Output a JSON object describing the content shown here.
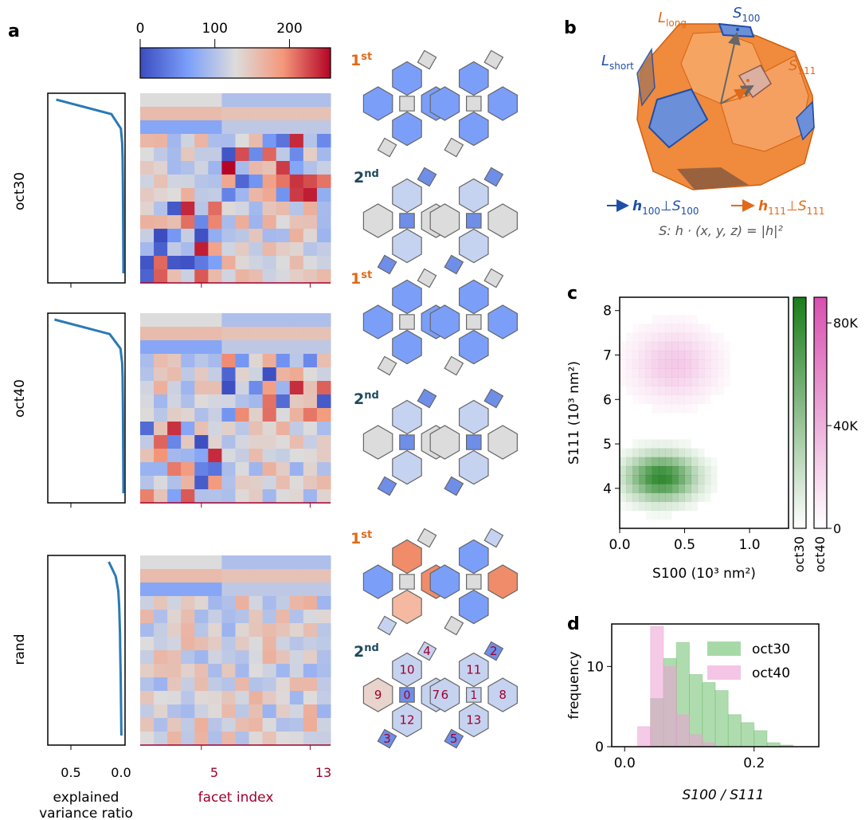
{
  "panel_labels": {
    "a": "a",
    "b": "b",
    "c": "c",
    "d": "d"
  },
  "colorbar_a": {
    "ticks": [
      "0",
      "100",
      "200"
    ],
    "tick_values": [
      0,
      100,
      200
    ],
    "range": [
      0,
      255
    ]
  },
  "rows": [
    {
      "label": "oct30",
      "evr": [
        0.78,
        0.14,
        0.03,
        0.015,
        0.01,
        0.008,
        0.006,
        0.005,
        0.004,
        0.003,
        0.002,
        0.001,
        0.0
      ]
    },
    {
      "label": "oct40",
      "evr": [
        0.8,
        0.16,
        0.035,
        0.015,
        0.01,
        0.008,
        0.006,
        0.005,
        0.004,
        0.003,
        0.002,
        0.001,
        0.0
      ]
    },
    {
      "label": "rand",
      "evr": [
        0.17,
        0.09,
        0.06,
        0.05,
        0.045,
        0.04,
        0.038,
        0.035,
        0.032,
        0.03,
        0.028,
        0.026,
        0.024
      ]
    }
  ],
  "axis_a": {
    "evr_ticks": [
      "0.5",
      "0.0"
    ],
    "evr_xlabel_1": "explained",
    "evr_xlabel_2": "variance ratio",
    "facet_ticks": [
      "5",
      "13"
    ],
    "facet_xlabel": "facet index"
  },
  "order_labels": {
    "first": "1",
    "first_sup": "st",
    "second": "2",
    "second_sup": "nd"
  },
  "facet_numbers": [
    "10",
    "4",
    "9",
    "0",
    "7",
    "12",
    "3",
    "11",
    "2",
    "6",
    "1",
    "8",
    "13",
    "5"
  ],
  "panel_b": {
    "L_long": "L",
    "L_long_sub": "long",
    "L_short": "L",
    "L_short_sub": "short",
    "S100": "S",
    "S100_sub": "100",
    "S111": "S",
    "S111_sub": "111",
    "legend_h100": "h",
    "legend_h100_sub": "100",
    "legend_h100_perp": "⊥S",
    "legend_h100_sub2": "100",
    "legend_h111": "h",
    "legend_h111_sub": "111",
    "legend_h111_perp": "⊥S",
    "legend_h111_sub2": "111",
    "equation": "S: h · (x, y, z) = |h|²"
  },
  "chart_data": [
    {
      "type": "heatmap",
      "title": "",
      "xlabel": "S100 (10³ nm²)",
      "ylabel": "S111 (10³ nm²)",
      "xlim": [
        0.0,
        1.3
      ],
      "ylim": [
        3.1,
        8.3
      ],
      "x_ticks": [
        "0.0",
        "0.5",
        "1.0"
      ],
      "y_ticks": [
        "4",
        "5",
        "6",
        "7",
        "8"
      ],
      "series": [
        {
          "name": "oct30",
          "center": [
            0.32,
            4.25
          ],
          "spread": [
            0.18,
            0.35
          ],
          "peak": 90000
        },
        {
          "name": "oct40",
          "center": [
            0.42,
            6.8
          ],
          "spread": [
            0.22,
            0.55
          ],
          "peak": 30000
        }
      ],
      "colorbars": [
        {
          "name": "oct30",
          "ticks": []
        },
        {
          "name": "oct40",
          "ticks": [
            "80K",
            "40K",
            "0"
          ],
          "tick_values": [
            80000,
            40000,
            0
          ]
        }
      ]
    },
    {
      "type": "bar",
      "title": "",
      "xlabel": "S100 / S111",
      "ylabel": "frequency",
      "xlim": [
        -0.02,
        0.3
      ],
      "ylim": [
        0,
        15.3
      ],
      "x_ticks": [
        "0.0",
        "0.2"
      ],
      "y_ticks": [
        "0",
        "10"
      ],
      "bin_edges": [
        0.0,
        0.02,
        0.04,
        0.06,
        0.08,
        0.1,
        0.12,
        0.14,
        0.16,
        0.18,
        0.2,
        0.22,
        0.24,
        0.26
      ],
      "series": [
        {
          "name": "oct30",
          "values": [
            0,
            0,
            6,
            11,
            13,
            9,
            8,
            7,
            4,
            3,
            2,
            0.5,
            0.2
          ]
        },
        {
          "name": "oct40",
          "values": [
            0,
            2.5,
            15,
            10,
            4,
            1.5,
            0.5,
            0,
            0,
            0,
            0,
            0,
            0
          ]
        }
      ],
      "legend": [
        "oct30",
        "oct40"
      ],
      "legend_position": "top-right"
    }
  ]
}
